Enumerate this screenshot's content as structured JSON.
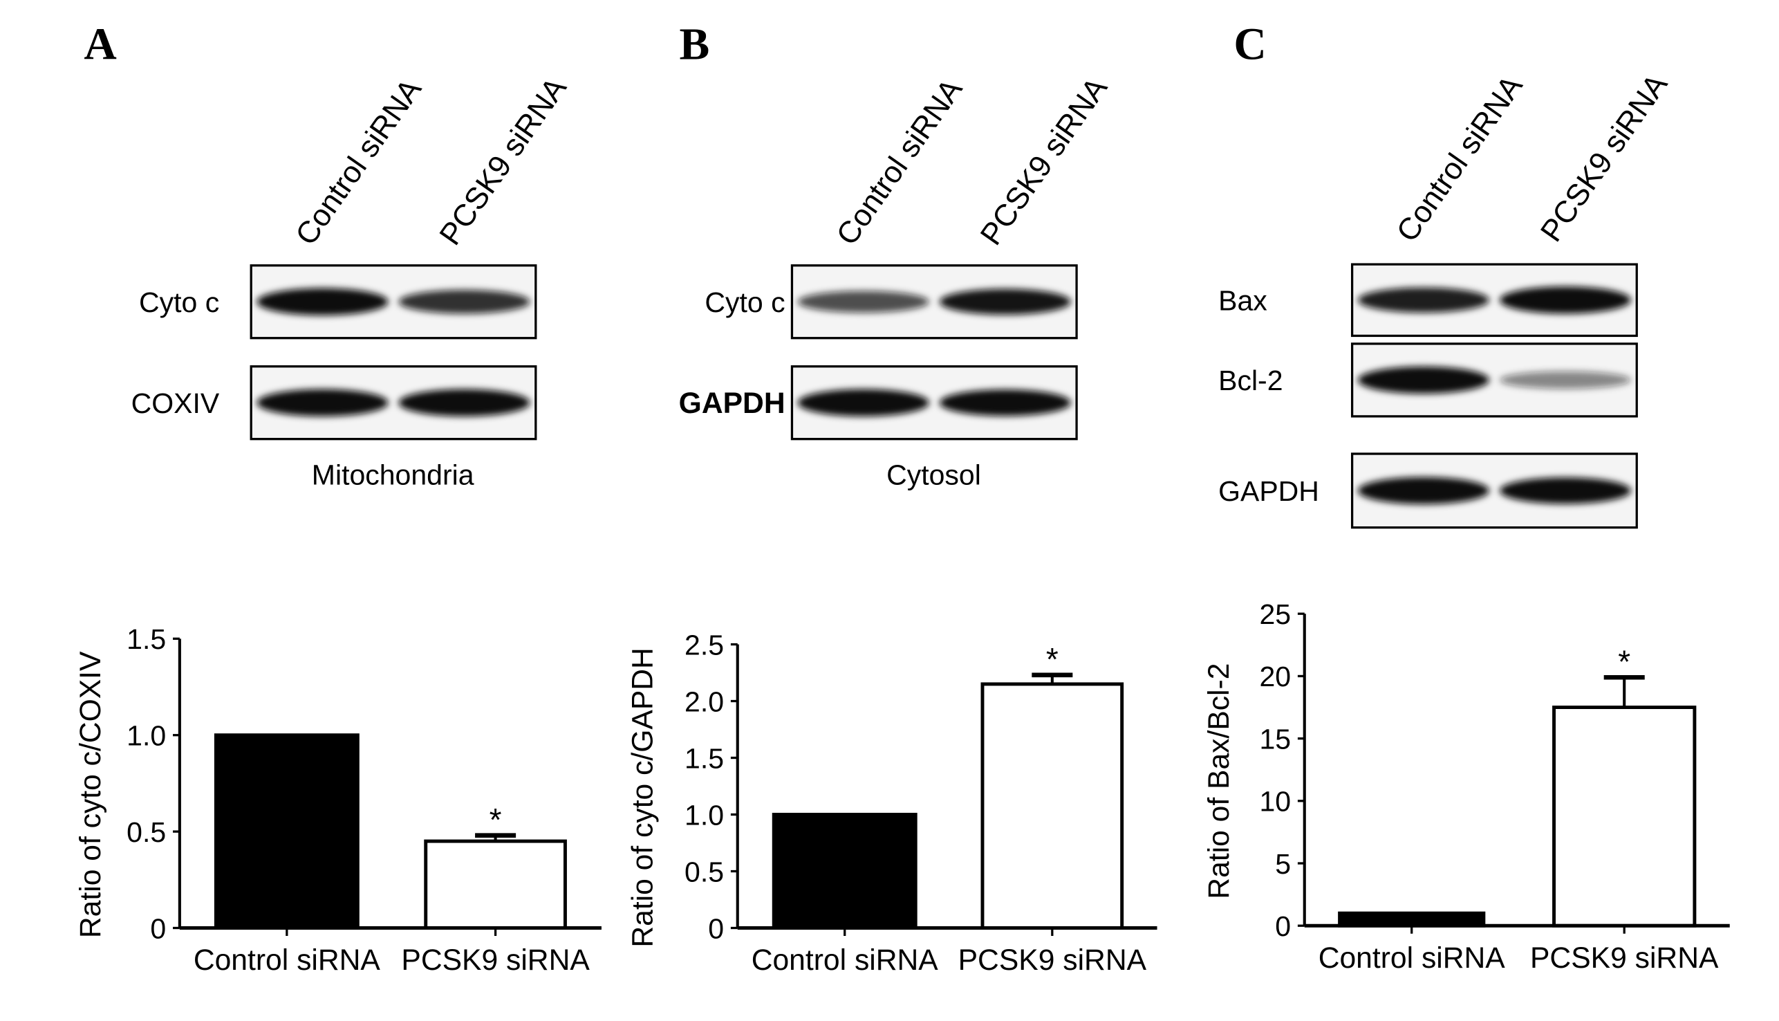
{
  "panels": [
    {
      "letter": "A",
      "lanes": [
        "Control siRNA",
        "PCSK9 siRNA"
      ],
      "blots": [
        {
          "label": "Cyto c",
          "bold": false,
          "intensity": [
            1.0,
            0.75
          ]
        },
        {
          "label": "COXIV",
          "bold": false,
          "intensity": [
            1.0,
            1.0
          ]
        }
      ],
      "fraction": "Mitochondria"
    },
    {
      "letter": "B",
      "lanes": [
        "Control siRNA",
        "PCSK9 siRNA"
      ],
      "blots": [
        {
          "label": "Cyto c",
          "bold": false,
          "intensity": [
            0.6,
            0.9
          ]
        },
        {
          "label": "GAPDH",
          "bold": true,
          "intensity": [
            1.0,
            0.95
          ]
        }
      ],
      "fraction": "Cytosol"
    },
    {
      "letter": "C",
      "lanes": [
        "Control siRNA",
        "PCSK9 siRNA"
      ],
      "blots": [
        {
          "label": "Bax",
          "bold": false,
          "intensity": [
            0.85,
            1.0
          ]
        },
        {
          "label": "Bcl-2",
          "bold": false,
          "intensity": [
            1.0,
            0.3
          ]
        },
        {
          "label": "GAPDH",
          "bold": false,
          "intensity": [
            1.0,
            0.95
          ]
        }
      ],
      "fraction": ""
    }
  ],
  "chart_data": [
    {
      "type": "bar",
      "categories": [
        "Control siRNA",
        "PCSK9 siRNA"
      ],
      "values": [
        1.0,
        0.45
      ],
      "errors": [
        0,
        0.03
      ],
      "significance": [
        "",
        "*"
      ],
      "fill": [
        "#000000",
        "#ffffff"
      ],
      "ylabel": "Ratio of cyto c/COXIV",
      "ylim": [
        0,
        1.5
      ],
      "yticks": [
        "0",
        "0.5",
        "1.0",
        "1.5"
      ],
      "ytick_values": [
        0,
        0.5,
        1.0,
        1.5
      ],
      "grid": false
    },
    {
      "type": "bar",
      "categories": [
        "Control siRNA",
        "PCSK9 siRNA"
      ],
      "values": [
        1.0,
        2.15
      ],
      "errors": [
        0,
        0.08
      ],
      "significance": [
        "",
        "*"
      ],
      "fill": [
        "#000000",
        "#ffffff"
      ],
      "ylabel": "Ratio of cyto c/GAPDH",
      "ylim": [
        0,
        2.5
      ],
      "yticks": [
        "0",
        "0.5",
        "1.0",
        "1.5",
        "2.0",
        "2.5"
      ],
      "ytick_values": [
        0,
        0.5,
        1.0,
        1.5,
        2.0,
        2.5
      ],
      "grid": false
    },
    {
      "type": "bar",
      "categories": [
        "Control siRNA",
        "PCSK9 siRNA"
      ],
      "values": [
        1.0,
        17.5
      ],
      "errors": [
        0,
        2.4
      ],
      "significance": [
        "",
        "*"
      ],
      "fill": [
        "#000000",
        "#ffffff"
      ],
      "ylabel": "Ratio of Bax/Bcl-2",
      "ylim": [
        0,
        25
      ],
      "yticks": [
        "0",
        "5",
        "10",
        "15",
        "20",
        "25"
      ],
      "ytick_values": [
        0,
        5,
        10,
        15,
        20,
        25
      ],
      "grid": false
    }
  ]
}
